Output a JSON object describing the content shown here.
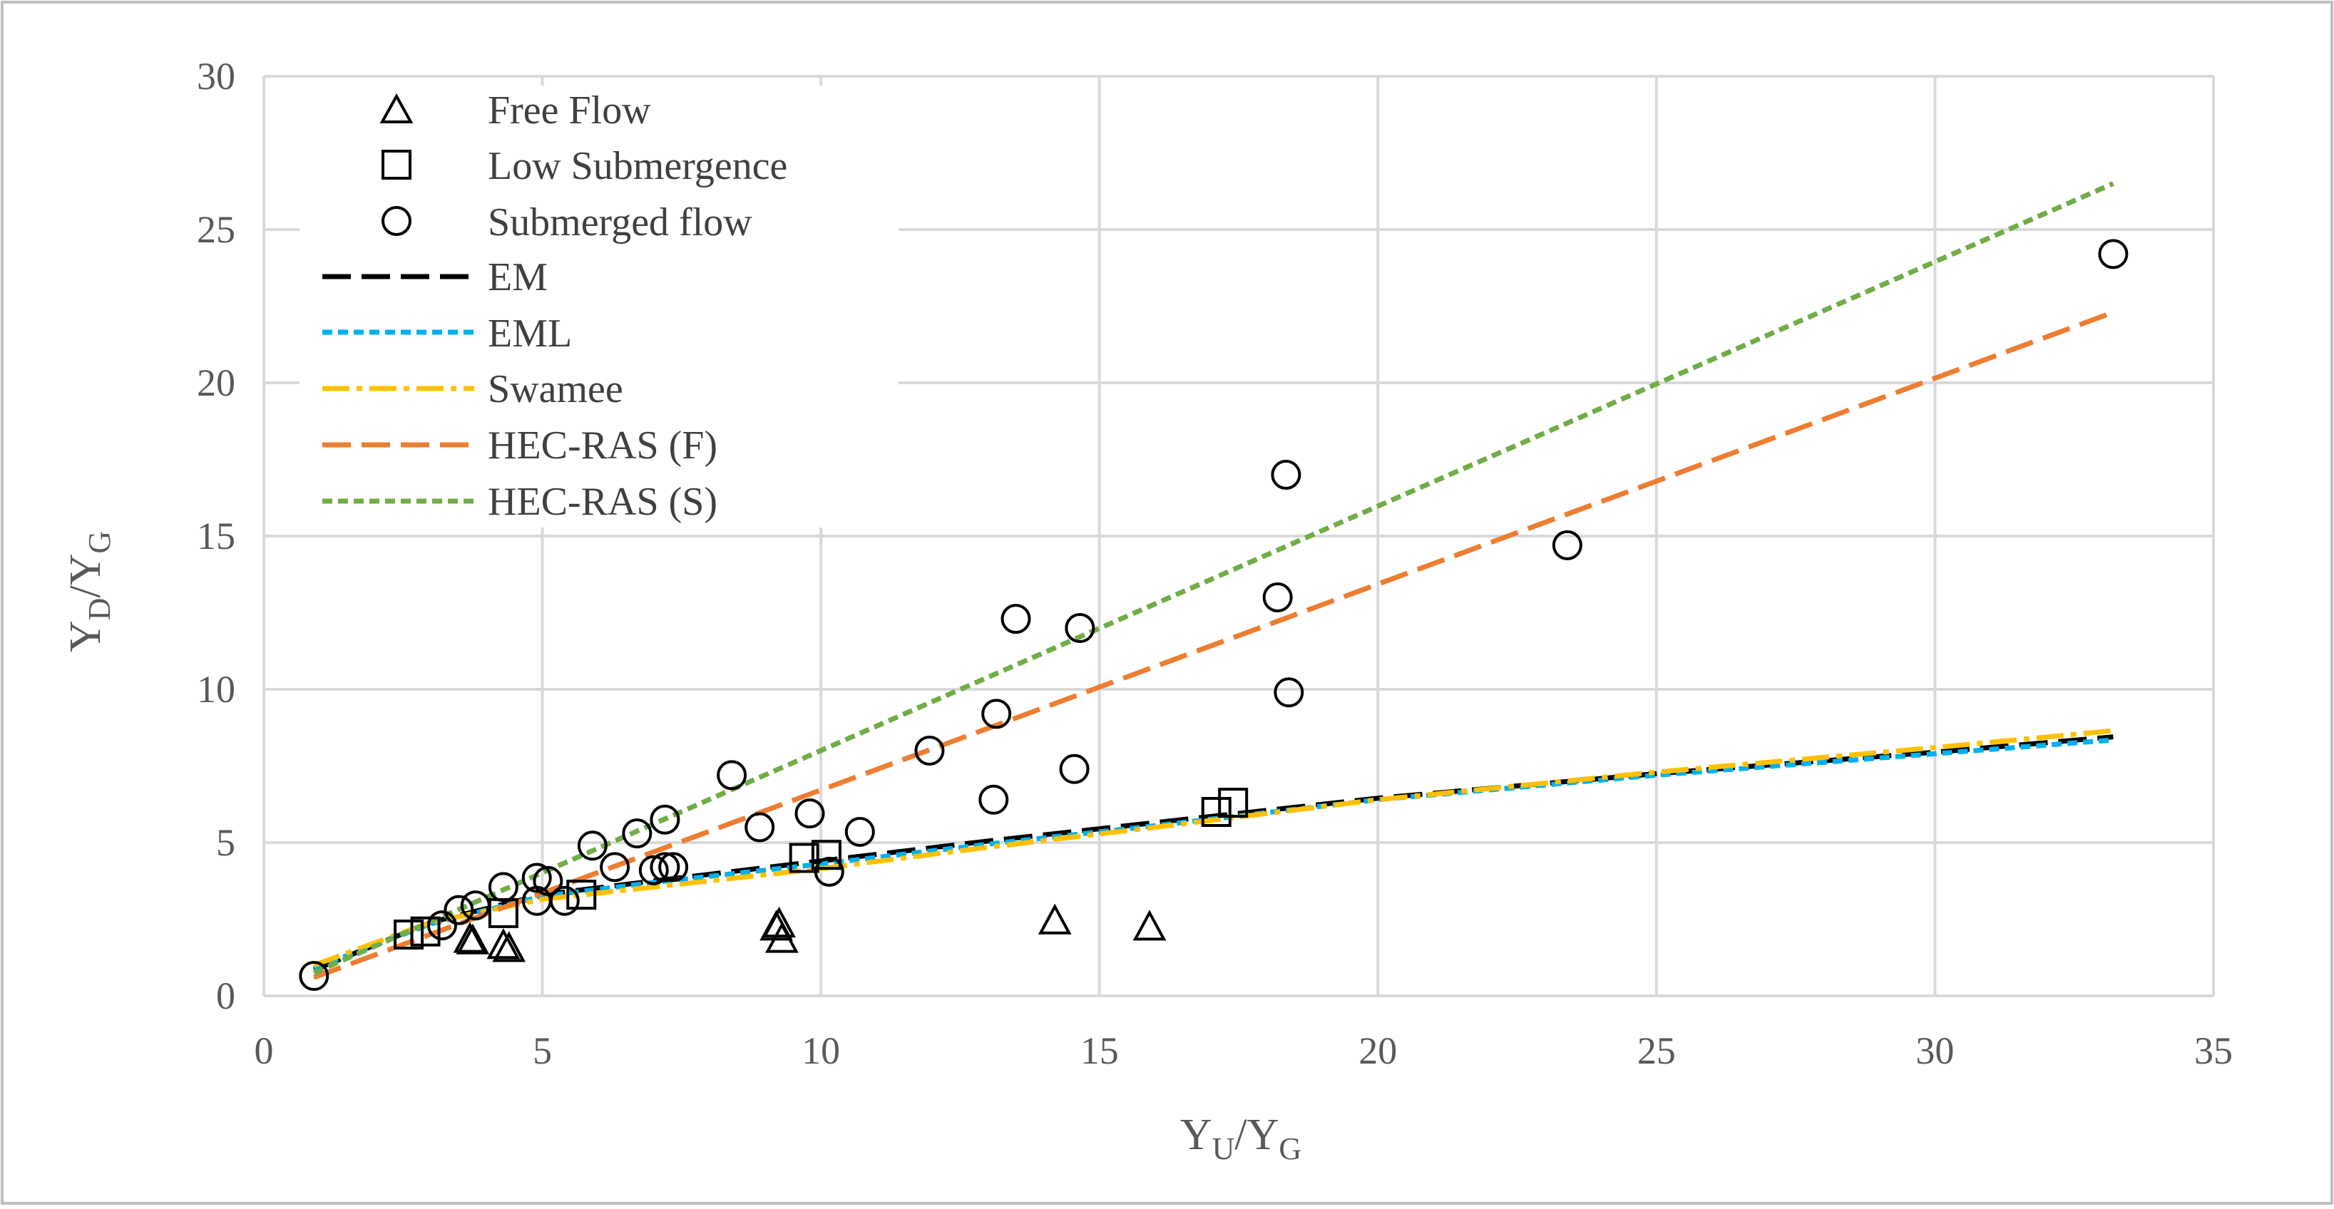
{
  "chart_data": {
    "type": "scatter",
    "title": "",
    "xlabel": {
      "main": "Y",
      "sub": "U",
      "sep": "/",
      "main2": "Y",
      "sub2": "G"
    },
    "ylabel": {
      "main": "Y",
      "sub": "D",
      "sep": "/",
      "main2": "Y",
      "sub2": "G"
    },
    "xlim": [
      0,
      35
    ],
    "ylim": [
      0,
      30
    ],
    "xticks": [
      0,
      5,
      10,
      15,
      20,
      25,
      30,
      35
    ],
    "yticks": [
      0,
      5,
      10,
      15,
      20,
      25,
      30
    ],
    "grid": true,
    "legend_position": "top-left",
    "colors": {
      "grid": "#d9d9d9",
      "axis_text": "#595959",
      "marker": "#000000",
      "border": "#bfbfbf"
    },
    "scatter_series": [
      {
        "name": "Free Flow",
        "marker": "triangle",
        "points": [
          [
            3.7,
            1.8
          ],
          [
            3.75,
            1.75
          ],
          [
            4.3,
            1.6
          ],
          [
            4.4,
            1.5
          ],
          [
            9.2,
            2.2
          ],
          [
            9.25,
            2.3
          ],
          [
            9.3,
            1.8
          ],
          [
            14.2,
            2.4
          ],
          [
            15.9,
            2.2
          ]
        ]
      },
      {
        "name": "Low Submergence",
        "marker": "square",
        "points": [
          [
            2.6,
            2.0
          ],
          [
            2.9,
            2.1
          ],
          [
            4.3,
            2.7
          ],
          [
            5.7,
            3.3
          ],
          [
            9.7,
            4.5
          ],
          [
            10.1,
            4.6
          ],
          [
            17.1,
            6.0
          ],
          [
            17.4,
            6.3
          ]
        ]
      },
      {
        "name": "Submerged flow",
        "marker": "circle",
        "points": [
          [
            0.9,
            0.65
          ],
          [
            3.2,
            2.3
          ],
          [
            3.5,
            2.8
          ],
          [
            3.8,
            2.95
          ],
          [
            4.3,
            3.55
          ],
          [
            4.9,
            3.85
          ],
          [
            5.1,
            3.75
          ],
          [
            4.9,
            3.1
          ],
          [
            5.4,
            3.1
          ],
          [
            5.9,
            4.9
          ],
          [
            6.3,
            4.2
          ],
          [
            6.7,
            5.3
          ],
          [
            7.0,
            4.1
          ],
          [
            7.2,
            4.2
          ],
          [
            7.35,
            4.2
          ],
          [
            7.2,
            5.75
          ],
          [
            8.4,
            7.2
          ],
          [
            8.9,
            5.5
          ],
          [
            9.8,
            5.95
          ],
          [
            10.15,
            4.05
          ],
          [
            10.7,
            5.35
          ],
          [
            11.95,
            8.0
          ],
          [
            13.1,
            6.4
          ],
          [
            13.15,
            9.2
          ],
          [
            13.5,
            12.3
          ],
          [
            14.55,
            7.4
          ],
          [
            14.65,
            12.0
          ],
          [
            18.2,
            13.0
          ],
          [
            18.35,
            17.0
          ],
          [
            18.4,
            9.9
          ],
          [
            23.4,
            14.7
          ],
          [
            33.2,
            24.2
          ]
        ]
      }
    ],
    "line_series": [
      {
        "name": "EM",
        "color": "#000000",
        "dash": "long-dash",
        "x": [
          0.9,
          3,
          5,
          7,
          10,
          13,
          16,
          20,
          25,
          30,
          33.2
        ],
        "y": [
          0.85,
          2.4,
          3.3,
          3.75,
          4.4,
          5.05,
          5.65,
          6.45,
          7.25,
          7.95,
          8.45
        ]
      },
      {
        "name": "EML",
        "color": "#00b0f0",
        "dash": "short-dash",
        "x": [
          0.9,
          3,
          5,
          7,
          10,
          13,
          16,
          20,
          25,
          30,
          33.2
        ],
        "y": [
          0.9,
          2.35,
          3.25,
          3.7,
          4.3,
          4.95,
          5.55,
          6.4,
          7.2,
          7.9,
          8.35
        ]
      },
      {
        "name": "Swamee",
        "color": "#ffc000",
        "dash": "dash-dot",
        "x": [
          0.9,
          3,
          5,
          7,
          10,
          13,
          16,
          20,
          25,
          30,
          33.2
        ],
        "y": [
          1.0,
          2.4,
          3.15,
          3.55,
          4.15,
          4.85,
          5.5,
          6.4,
          7.3,
          8.1,
          8.65
        ]
      },
      {
        "name": "HEC-RAS (F)",
        "color": "#ed7d31",
        "dash": "long-dash",
        "x": [
          0.9,
          33.2
        ],
        "y": [
          0.6,
          22.3
        ]
      },
      {
        "name": "HEC-RAS (S)",
        "color": "#70ad47",
        "dash": "short-dash",
        "x": [
          0.9,
          33.2
        ],
        "y": [
          0.75,
          26.5
        ]
      }
    ]
  }
}
